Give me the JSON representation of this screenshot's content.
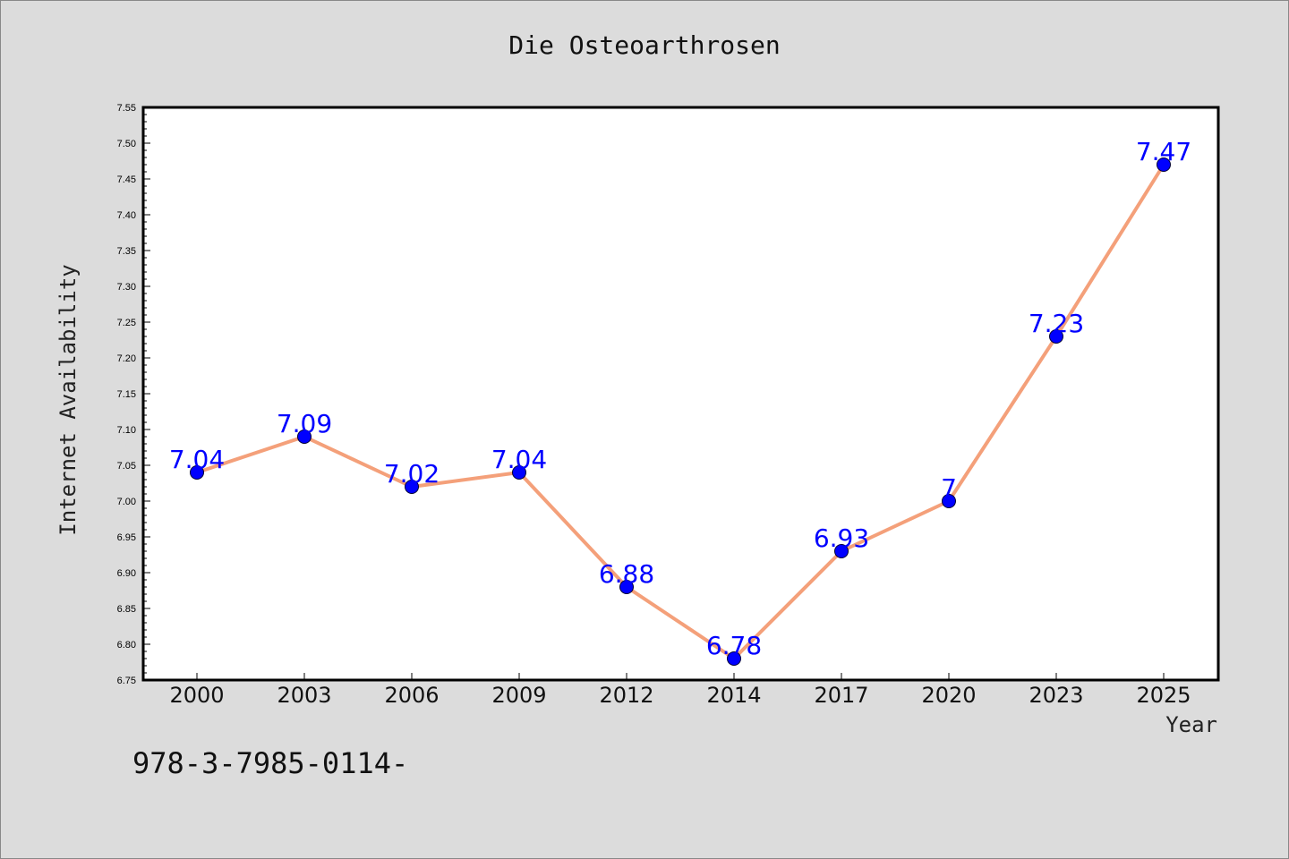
{
  "chart_data": {
    "type": "line",
    "title": "Die Osteoarthrosen",
    "xlabel": "Year",
    "ylabel": "Internet Availability",
    "categories": [
      "2000",
      "2003",
      "2006",
      "2009",
      "2012",
      "2014",
      "2017",
      "2020",
      "2023",
      "2025"
    ],
    "series": [
      {
        "values": [
          7.04,
          7.09,
          7.02,
          7.04,
          6.88,
          6.78,
          6.93,
          7,
          7.23,
          7.47
        ]
      }
    ],
    "data_labels": [
      "7.04",
      "7.09",
      "7.02",
      "7.04",
      "6.88",
      "6.78",
      "6.93",
      "7",
      "7.23",
      "7.47"
    ],
    "ylim": [
      6.75,
      7.55
    ],
    "yticks": [
      "6.75",
      "6.80",
      "6.85",
      "6.90",
      "6.95",
      "7.00",
      "7.05",
      "7.10",
      "7.15",
      "7.20",
      "7.25",
      "7.30",
      "7.35",
      "7.40",
      "7.45",
      "7.50",
      "7.55"
    ],
    "grid": false,
    "line_color": "#f4a07a",
    "marker_color": "#0000ff",
    "label_color": "#0000ff"
  },
  "footnote": "978-3-7985-0114-"
}
